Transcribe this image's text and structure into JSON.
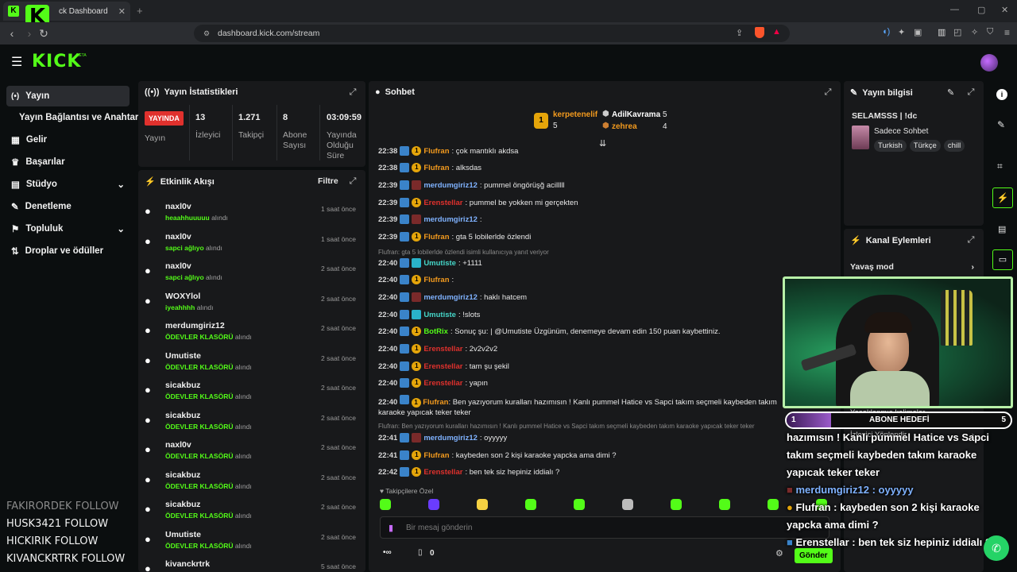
{
  "browser": {
    "tab_title": "ck Dashboard",
    "url": "dashboard.kick.com/stream",
    "colors": {
      "chrome": "#1f2124"
    }
  },
  "header": {
    "logo_text": "KICK",
    "logo_sup": "BETA"
  },
  "sidebar": {
    "items": [
      {
        "label": "Yayın",
        "icon": "broadcast-icon",
        "active": true
      },
      {
        "label": "Yayın Bağlantısı ve Anahtarı",
        "icon": "",
        "active": false
      },
      {
        "label": "Gelir",
        "icon": "revenue-icon",
        "active": false
      },
      {
        "label": "Başarılar",
        "icon": "trophy-icon",
        "active": false
      },
      {
        "label": "Stüdyo",
        "icon": "studio-icon",
        "active": false,
        "chevron": true
      },
      {
        "label": "Denetleme",
        "icon": "wrench-icon",
        "active": false
      },
      {
        "label": "Topluluk",
        "icon": "community-icon",
        "active": false,
        "chevron": true
      },
      {
        "label": "Droplar ve ödüller",
        "icon": "drops-icon",
        "active": false
      }
    ],
    "follow_feed": [
      "FAKIRORDEK  FOLLOW",
      "HUSK3421  FOLLOW",
      "HICKIRIK  FOLLOW",
      "KIVANCKRTRK  FOLLOW"
    ]
  },
  "stats": {
    "title": "Yayın İstatistikleri",
    "live_badge": "YAYINDA",
    "live_label": "Yayın",
    "items": [
      {
        "value": "13",
        "label": "İzleyici"
      },
      {
        "value": "1.271",
        "label": "Takipçi"
      },
      {
        "value": "8",
        "label": "Abone Sayısı"
      },
      {
        "value": "03:09:59",
        "label": "Yayında Olduğu Süre"
      }
    ]
  },
  "activity": {
    "title": "Etkinlik Akışı",
    "filter_label": "Filtre",
    "reward_suffix": "alındı",
    "rows": [
      {
        "name": "naxl0v",
        "reward": "heaahhuuuuu",
        "time": "1 saat önce"
      },
      {
        "name": "naxl0v",
        "reward": "sapci ağlıyo",
        "time": "1 saat önce"
      },
      {
        "name": "naxl0v",
        "reward": "sapci ağlıyo",
        "time": "2 saat önce"
      },
      {
        "name": "WOXYlol",
        "reward": "iyeahhhh",
        "time": "2 saat önce"
      },
      {
        "name": "merdumgiriz12",
        "reward": "ÖDEVLER KLASÖRÜ",
        "time": "2 saat önce"
      },
      {
        "name": "Umutiste",
        "reward": "ÖDEVLER KLASÖRÜ",
        "time": "2 saat önce"
      },
      {
        "name": "sicakbuz",
        "reward": "ÖDEVLER KLASÖRÜ",
        "time": "2 saat önce"
      },
      {
        "name": "sicakbuz",
        "reward": "ÖDEVLER KLASÖRÜ",
        "time": "2 saat önce"
      },
      {
        "name": "naxl0v",
        "reward": "ÖDEVLER KLASÖRÜ",
        "time": "2 saat önce"
      },
      {
        "name": "sicakbuz",
        "reward": "ÖDEVLER KLASÖRÜ",
        "time": "2 saat önce"
      },
      {
        "name": "sicakbuz",
        "reward": "ÖDEVLER KLASÖRÜ",
        "time": "2 saat önce"
      },
      {
        "name": "Umutiste",
        "reward": "ÖDEVLER KLASÖRÜ",
        "time": "2 saat önce"
      },
      {
        "name": "kivanckrtrk",
        "reward": "",
        "time": "5 saat önce"
      }
    ]
  },
  "chat": {
    "title": "Sohbet",
    "leaderboard": [
      {
        "name": "kerpetenelif",
        "count": "5"
      },
      {
        "name": "AdilKavrama",
        "count": "5"
      },
      {
        "name": "zehrea",
        "count": "4"
      }
    ],
    "messages": [
      {
        "time": "22:38",
        "user": "Flufran",
        "color": "orange",
        "text": ": çok mantıklı akdsa"
      },
      {
        "time": "22:38",
        "user": "Flufran",
        "color": "orange",
        "text": ": alksdas"
      },
      {
        "time": "22:39",
        "user": "merdumgiriz12",
        "color": "blue",
        "text": ": pummel öngörüşğ acilllll"
      },
      {
        "time": "22:39",
        "user": "Erenstellar",
        "color": "red",
        "text": ": pummel be yokken mi gerçekten"
      },
      {
        "time": "22:39",
        "user": "merdumgiriz12",
        "color": "blue",
        "text": ":"
      },
      {
        "time": "22:39",
        "user": "Flufran",
        "color": "orange",
        "text": ": gta 5 lobilerlde özlendi"
      },
      {
        "time": "22:40",
        "user": "Umutiste",
        "color": "teal",
        "text": ": +1111"
      },
      {
        "time": "22:40",
        "user": "Flufran",
        "color": "orange",
        "text": ":"
      },
      {
        "time": "22:40",
        "user": "merdumgiriz12",
        "color": "blue",
        "text": ": haklı hatcem"
      },
      {
        "time": "22:40",
        "user": "Umutiste",
        "color": "teal",
        "text": ": !slots"
      },
      {
        "time": "22:40",
        "user": "BotRix",
        "color": "green",
        "text": ": Sonuç şu: | @Umutiste Üzgünüm, denemeye devam edin 150 puan kaybettiniz."
      },
      {
        "time": "22:40",
        "user": "Erenstellar",
        "color": "red",
        "text": ": 2v2v2v2"
      },
      {
        "time": "22:40",
        "user": "Erenstellar",
        "color": "red",
        "text": ": tam şu şekil"
      },
      {
        "time": "22:40",
        "user": "Erenstellar",
        "color": "red",
        "text": ": yapın"
      },
      {
        "time": "22:40",
        "user": "Flufran",
        "color": "orange",
        "text": ": Ben yazıyorum kuralları hazımısın ! Kanlı pummel Hatice vs Sapci takım seçmeli kaybeden takım karaoke yapıcak teker teker"
      },
      {
        "time": "22:41",
        "user": "merdumgiriz12",
        "color": "blue",
        "text": ": oyyyyy"
      },
      {
        "time": "22:41",
        "user": "Flufran",
        "color": "orange",
        "text": ": kaybeden son 2 kişi karaoke yapcka ama dimi ?"
      },
      {
        "time": "22:42",
        "user": "Erenstellar",
        "color": "red",
        "text": ": ben tek siz hepiniz iddialı ?"
      }
    ],
    "replies": [
      "Flufran: gta 5 lobilerlde özlendi isimli kullanıcıya yanıt veriyor",
      "Flufran: Ben yazıyorum kuralları hazımısın ! Kanlı pummel Hatice vs Sapci takım seçmeli kaybeden takım karaoke yapıcak teker teker"
    ],
    "emote_section": "Takipçilere Özel",
    "input_placeholder": "Bir mesaj gönderin",
    "points_value": "0",
    "send_label": "Gönder"
  },
  "stream_info": {
    "title": "Yayın bilgisi",
    "stream_title": "SELAMSSS | !dc",
    "category": "Sadece Sohbet",
    "tags": [
      "Turkish",
      "Türkçe",
      "chill"
    ]
  },
  "channel_actions": {
    "title": "Kanal Eylemleri",
    "items": [
      "Yavaş mod",
      "Yasaklanmış kelimeler",
      "İzleyici Yönlendir"
    ]
  },
  "overlay": {
    "goal_left": "1",
    "goal_label": "ABONE HEDEFİ",
    "goal_right": "5",
    "goal_progress": 0.2,
    "lines": [
      "hazımısın ! Kanlı pummel Hatice vs Sapci takım seçmeli kaybeden takım karaoke yapıcak teker teker",
      "merdumgiriz12 : oyyyyy",
      "Flufran : kaybeden son 2 kişi karaoke yapcka ama dimi ?",
      "Erenstellar : ben tek siz hepiniz iddialı ?"
    ]
  }
}
